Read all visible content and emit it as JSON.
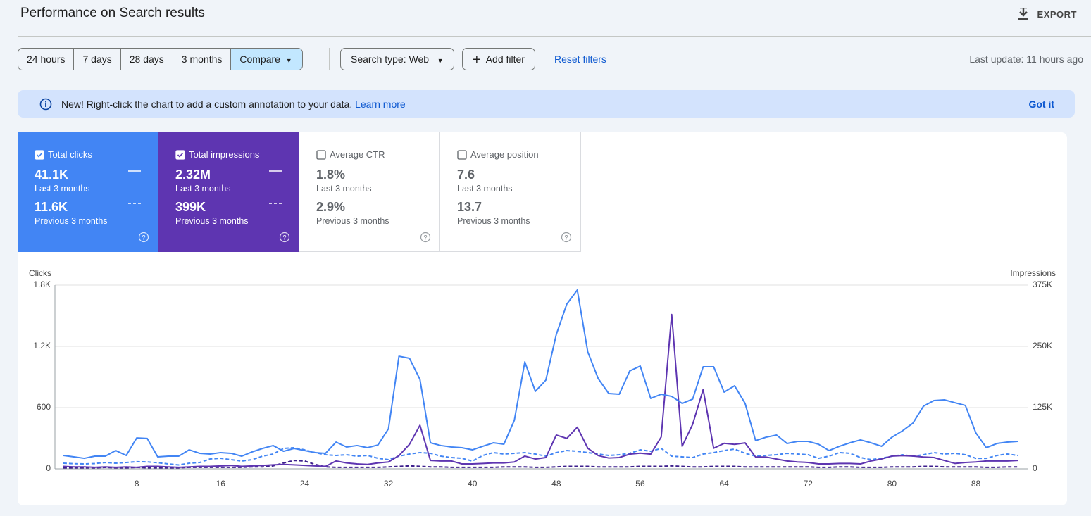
{
  "header": {
    "title": "Performance on Search results",
    "export": "EXPORT"
  },
  "filters": {
    "ranges": [
      "24 hours",
      "7 days",
      "28 days",
      "3 months",
      "Compare"
    ],
    "search_type": "Search type: Web",
    "add_filter": "Add filter",
    "reset": "Reset filters",
    "last_update": "Last update: 11 hours ago"
  },
  "banner": {
    "text": "New! Right-click the chart to add a custom annotation to your data.",
    "link": "Learn more",
    "dismiss": "Got it"
  },
  "metrics": [
    {
      "label": "Total clicks",
      "current": "41.1K",
      "current_period": "Last 3 months",
      "previous": "11.6K",
      "previous_period": "Previous 3 months",
      "checked": true,
      "color": "#4285f4"
    },
    {
      "label": "Total impressions",
      "current": "2.32M",
      "current_period": "Last 3 months",
      "previous": "399K",
      "previous_period": "Previous 3 months",
      "checked": true,
      "color": "#5e35b1"
    },
    {
      "label": "Average CTR",
      "current": "1.8%",
      "current_period": "Last 3 months",
      "previous": "2.9%",
      "previous_period": "Previous 3 months",
      "checked": false,
      "color": "#00897b"
    },
    {
      "label": "Average position",
      "current": "7.6",
      "current_period": "Last 3 months",
      "previous": "13.7",
      "previous_period": "Previous 3 months",
      "checked": false,
      "color": "#e8710a"
    }
  ],
  "chart_data": {
    "type": "line",
    "y_label": "Clicks",
    "y2_label": "Impressions",
    "x": [
      1,
      2,
      3,
      4,
      5,
      6,
      7,
      8,
      9,
      10,
      11,
      12,
      13,
      14,
      15,
      16,
      17,
      18,
      19,
      20,
      21,
      22,
      23,
      24,
      25,
      26,
      27,
      28,
      29,
      30,
      31,
      32,
      33,
      34,
      35,
      36,
      37,
      38,
      39,
      40,
      41,
      42,
      43,
      44,
      45,
      46,
      47,
      48,
      49,
      50,
      51,
      52,
      53,
      54,
      55,
      56,
      57,
      58,
      59,
      60,
      61,
      62,
      63,
      64,
      65,
      66,
      67,
      68,
      69,
      70,
      71,
      72,
      73,
      74,
      75,
      76,
      77,
      78,
      79,
      80,
      81,
      82,
      83,
      84,
      85,
      86,
      87,
      88,
      89,
      90,
      91,
      92
    ],
    "xlim": [
      0.2,
      93
    ],
    "xticks": [
      8,
      16,
      24,
      32,
      40,
      48,
      56,
      64,
      72,
      80,
      88
    ],
    "ylim": [
      0,
      1800
    ],
    "yticks": [
      0,
      600,
      {
        "value": 1200,
        "label": "1.2K"
      },
      {
        "value": 1800,
        "label": "1.8K"
      }
    ],
    "y2lim": [
      0,
      375000
    ],
    "y2ticks": [
      0,
      {
        "value": 125000,
        "label": "125K"
      },
      {
        "value": 250000,
        "label": "250K"
      },
      {
        "value": 375000,
        "label": "375K"
      }
    ],
    "grid": true,
    "series": [
      {
        "color": "#4285f4",
        "dash": false,
        "axis": "y",
        "values": [
          131,
          117,
          103,
          124,
          124,
          179,
          131,
          303,
          297,
          117,
          124,
          124,
          186,
          152,
          145,
          159,
          152,
          124,
          166,
          200,
          228,
          172,
          200,
          179,
          159,
          152,
          262,
          214,
          228,
          207,
          234,
          393,
          1103,
          1083,
          876,
          255,
          228,
          214,
          207,
          186,
          221,
          255,
          241,
          476,
          1048,
          759,
          869,
          1317,
          1614,
          1752,
          1145,
          883,
          738,
          731,
          959,
          1007,
          690,
          731,
          710,
          641,
          683,
          1000,
          1000,
          752,
          814,
          641,
          276,
          310,
          331,
          248,
          269,
          269,
          241,
          179,
          221,
          255,
          283,
          255,
          221,
          310,
          372,
          448,
          614,
          669,
          676,
          648,
          621,
          352,
          207,
          248,
          262,
          269
        ]
      },
      {
        "color": "#4285f4",
        "dash": true,
        "axis": "y",
        "values": [
          55,
          50,
          48,
          52,
          62,
          55,
          62,
          70,
          68,
          60,
          48,
          38,
          55,
          62,
          97,
          103,
          90,
          76,
          90,
          124,
          145,
          200,
          207,
          186,
          159,
          138,
          131,
          138,
          124,
          131,
          103,
          90,
          124,
          145,
          159,
          152,
          124,
          110,
          103,
          76,
          131,
          159,
          145,
          152,
          159,
          145,
          124,
          159,
          179,
          172,
          159,
          145,
          131,
          138,
          152,
          186,
          172,
          200,
          124,
          117,
          110,
          145,
          159,
          179,
          193,
          152,
          124,
          131,
          138,
          152,
          145,
          138,
          103,
          124,
          159,
          152,
          110,
          90,
          103,
          124,
          138,
          124,
          138,
          159,
          145,
          152,
          138,
          103,
          103,
          131,
          145,
          131
        ]
      },
      {
        "color": "#5e35b1",
        "dash": false,
        "axis": "y2",
        "values": [
          5000,
          4000,
          4000,
          3000,
          4000,
          3000,
          4000,
          3000,
          5000,
          5000,
          4000,
          3000,
          4000,
          5000,
          5000,
          6000,
          7000,
          5000,
          6000,
          7000,
          8000,
          9000,
          8000,
          7000,
          6000,
          5000,
          16000,
          12000,
          10000,
          9000,
          12000,
          14000,
          27000,
          50000,
          89000,
          17000,
          16000,
          16000,
          10000,
          10000,
          11000,
          12000,
          12000,
          14000,
          26000,
          20000,
          23000,
          69000,
          62000,
          85000,
          42000,
          27000,
          22000,
          23000,
          30000,
          32000,
          30000,
          65000,
          315000,
          46000,
          91000,
          162000,
          42000,
          52000,
          50000,
          53000,
          24000,
          24000,
          20000,
          16000,
          14000,
          13000,
          10000,
          10000,
          11000,
          11000,
          10000,
          16000,
          20000,
          26000,
          27000,
          26000,
          24000,
          23000,
          17000,
          11000,
          13000,
          14000,
          16000,
          16000,
          16000,
          17000
        ]
      },
      {
        "color": "#3c1f8c",
        "dash": true,
        "axis": "y2",
        "values": [
          2000,
          2000,
          2000,
          2000,
          3000,
          2000,
          2000,
          3000,
          2000,
          2000,
          2000,
          2000,
          3000,
          3000,
          3000,
          3000,
          3000,
          3000,
          4000,
          4000,
          6000,
          12000,
          17000,
          16000,
          9000,
          4000,
          3000,
          3000,
          3000,
          3000,
          3000,
          4000,
          5000,
          6000,
          5000,
          4000,
          4000,
          3000,
          3000,
          3000,
          3000,
          3000,
          4000,
          4000,
          4000,
          3000,
          3000,
          4000,
          5000,
          5000,
          5000,
          4000,
          4000,
          4000,
          4000,
          5000,
          5000,
          5000,
          6000,
          5000,
          4000,
          4000,
          5000,
          5000,
          5000,
          4000,
          4000,
          4000,
          4000,
          4000,
          4000,
          4000,
          3000,
          3000,
          4000,
          4000,
          3000,
          3000,
          3000,
          4000,
          4000,
          4000,
          5000,
          5000,
          4000,
          4000,
          4000,
          4000,
          3000,
          3000,
          4000,
          4000
        ]
      }
    ]
  }
}
